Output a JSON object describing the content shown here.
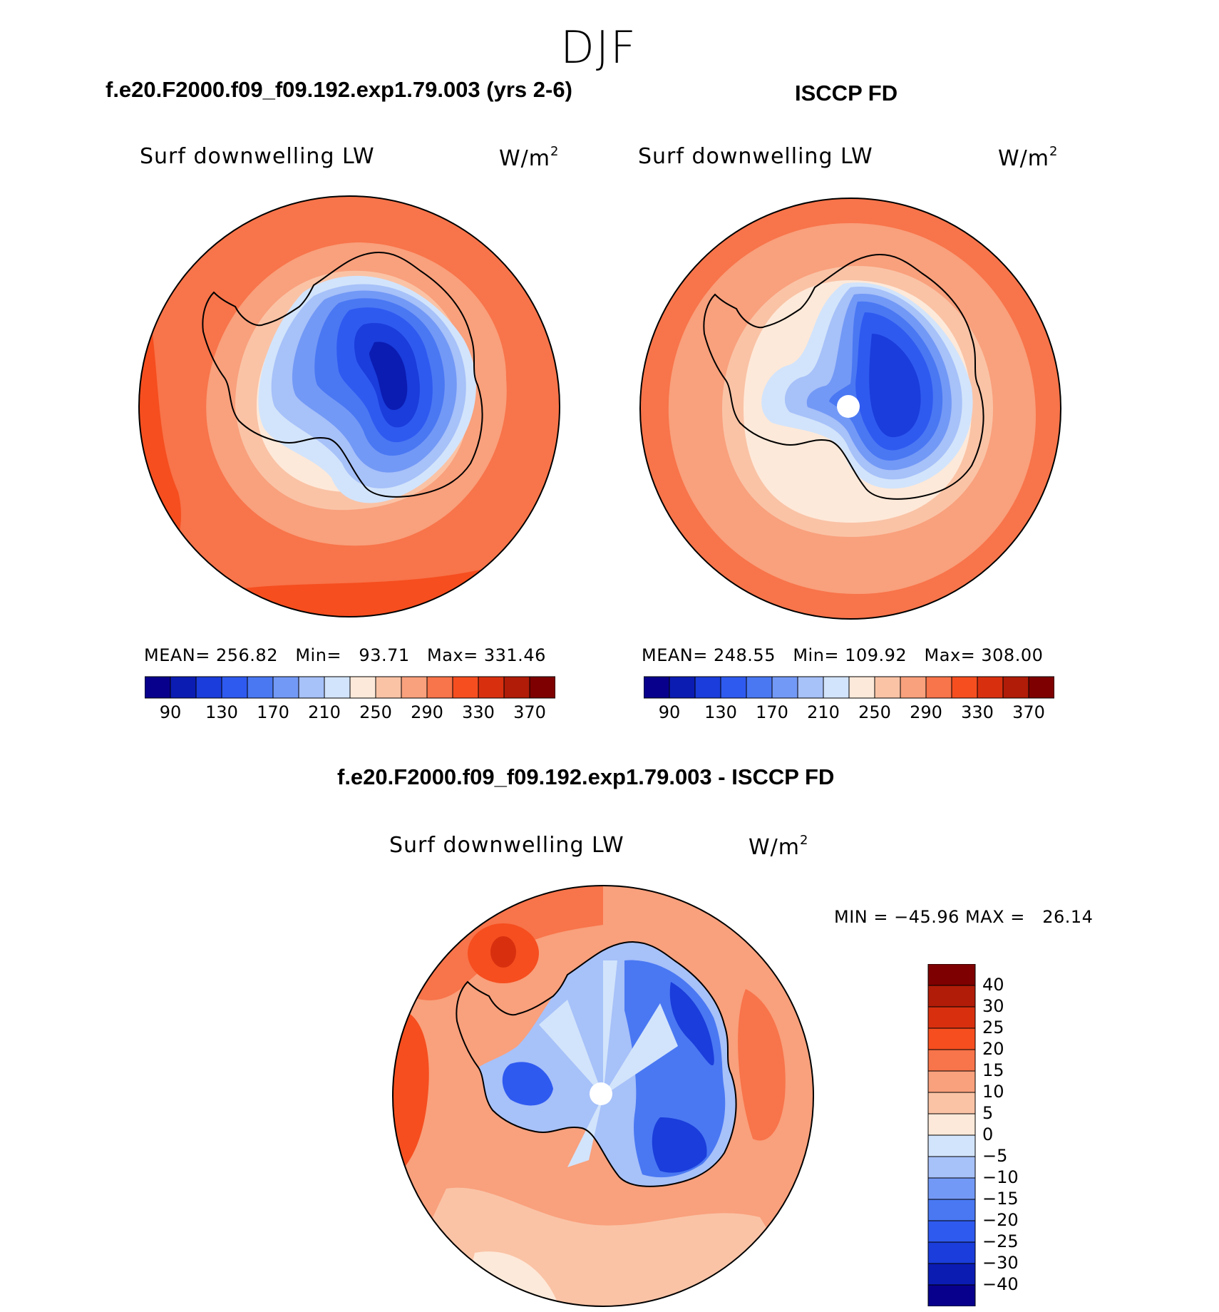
{
  "season": "DJF",
  "colors": {
    "abs_palette": [
      "#08008c",
      "#0b1cb3",
      "#1a3ddb",
      "#2f5af0",
      "#4a78f3",
      "#7399f6",
      "#a7c1f9",
      "#d2e4fb",
      "#fde9d9",
      "#fac3a6",
      "#f9a07c",
      "#f8744a",
      "#f64e1f",
      "#d8300f",
      "#b01c08",
      "#7e0000"
    ],
    "diff_palette": [
      "#08008c",
      "#0b1cb3",
      "#1a3ddb",
      "#2f5af0",
      "#4a78f3",
      "#7399f6",
      "#a7c1f9",
      "#d2e4fb",
      "#fde9d9",
      "#fac3a6",
      "#f9a07c",
      "#f8744a",
      "#f64e1f",
      "#d8300f",
      "#b01c08",
      "#7e0000"
    ]
  },
  "panels": {
    "model": {
      "title": "f.e20.F2000.f09_f09.192.exp1.79.003 (yrs 2-6)",
      "variable": "Surf downwelling LW",
      "units": "W/m",
      "units_exp": "2",
      "stats": "MEAN= 256.82   Min=   93.71   Max= 331.46",
      "ticks": [
        "90",
        "130",
        "170",
        "210",
        "250",
        "290",
        "330",
        "370"
      ]
    },
    "obs": {
      "title": "ISCCP FD",
      "variable": "Surf downwelling LW",
      "units": "W/m",
      "units_exp": "2",
      "stats": "MEAN= 248.55   Min= 109.92   Max= 308.00",
      "ticks": [
        "90",
        "130",
        "170",
        "210",
        "250",
        "290",
        "330",
        "370"
      ]
    },
    "diff": {
      "title": "f.e20.F2000.f09_f09.192.exp1.79.003 - ISCCP FD",
      "variable": "Surf downwelling LW",
      "units": "W/m",
      "units_exp": "2",
      "stats": "MIN = −45.96 MAX =   26.14",
      "ticks": [
        "40",
        "30",
        "25",
        "20",
        "15",
        "10",
        "5",
        "0",
        "−5",
        "−10",
        "−15",
        "−20",
        "−25",
        "−30",
        "−40"
      ]
    }
  },
  "chart_data": [
    {
      "type": "heatmap",
      "projection": "south-polar-stereographic",
      "title": "f.e20.F2000.f09_f09.192.exp1.79.003 (yrs 2-6)",
      "variable": "Surf downwelling LW",
      "units": "W/m2",
      "mean": 256.82,
      "min": 93.71,
      "max": 331.46,
      "contour_levels": [
        90,
        110,
        130,
        150,
        170,
        190,
        210,
        230,
        250,
        270,
        290,
        310,
        330,
        350,
        370
      ],
      "colorbar_tick_labels": [
        90,
        130,
        170,
        210,
        250,
        290,
        330,
        370
      ],
      "colorbar_orientation": "horizontal"
    },
    {
      "type": "heatmap",
      "projection": "south-polar-stereographic",
      "title": "ISCCP FD",
      "variable": "Surf downwelling LW",
      "units": "W/m2",
      "mean": 248.55,
      "min": 109.92,
      "max": 308.0,
      "contour_levels": [
        90,
        110,
        130,
        150,
        170,
        190,
        210,
        230,
        250,
        270,
        290,
        310,
        330,
        350,
        370
      ],
      "colorbar_tick_labels": [
        90,
        130,
        170,
        210,
        250,
        290,
        330,
        370
      ],
      "colorbar_orientation": "horizontal"
    },
    {
      "type": "heatmap",
      "projection": "south-polar-stereographic",
      "title": "f.e20.F2000.f09_f09.192.exp1.79.003 - ISCCP FD",
      "variable": "Surf downwelling LW",
      "units": "W/m2",
      "min": -45.96,
      "max": 26.14,
      "contour_levels": [
        -40,
        -30,
        -25,
        -20,
        -15,
        -10,
        -5,
        0,
        5,
        10,
        15,
        20,
        25,
        30,
        40
      ],
      "colorbar_tick_labels": [
        40,
        30,
        25,
        20,
        15,
        10,
        5,
        0,
        -5,
        -10,
        -15,
        -20,
        -25,
        -30,
        -40
      ],
      "colorbar_orientation": "vertical"
    }
  ]
}
